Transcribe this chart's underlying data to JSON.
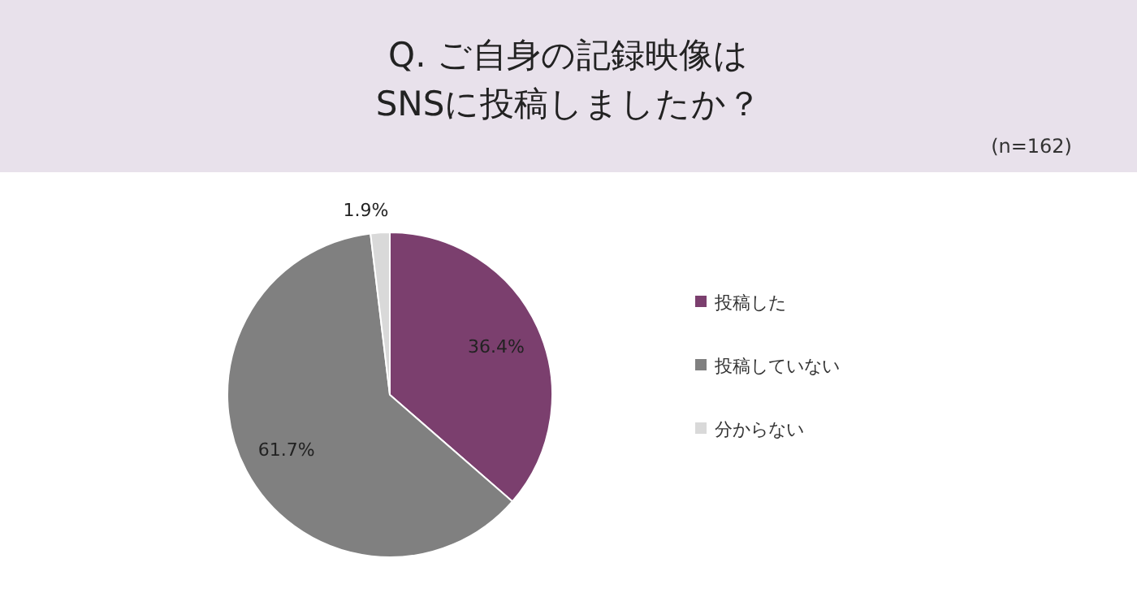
{
  "chart_data": {
    "type": "pie",
    "title": "Q. ご自身の記録映像は\nSNSに投稿しましたか？",
    "annotations": [
      "(n=162)"
    ],
    "categories": [
      "投稿した",
      "投稿していない",
      "分からない"
    ],
    "values": [
      36.4,
      61.7,
      1.9
    ],
    "colors": [
      "#7b3f6e",
      "#808080",
      "#d9d9d9"
    ],
    "value_labels": [
      "36.4%",
      "61.7%",
      "1.9%"
    ],
    "legend": "right"
  }
}
